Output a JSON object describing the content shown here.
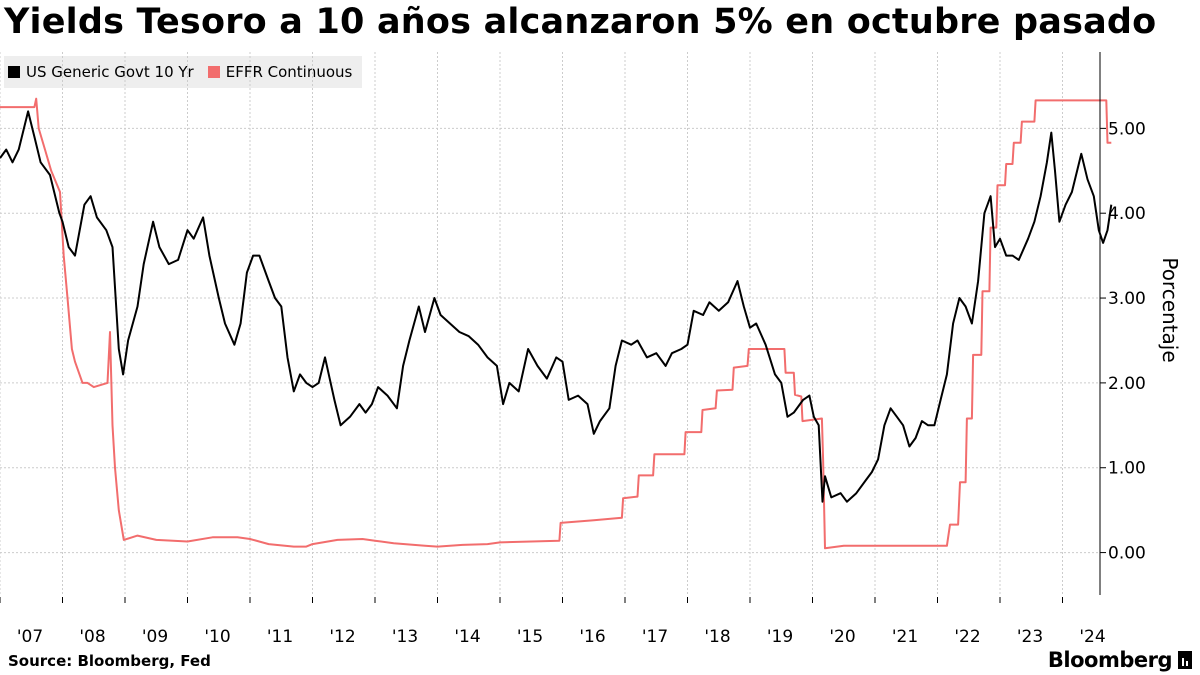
{
  "title": "Yields Tesoro a 10 años alcanzaron 5% en octubre pasado",
  "footer": {
    "source": "Source: Bloomberg, Fed",
    "brand": "Bloomberg"
  },
  "colors": {
    "yield": "#000000",
    "effr": "#f26d6d",
    "grid": "#cccccc"
  },
  "chart_data": {
    "type": "line",
    "ylabel": "Porcentaje",
    "ylim": [
      -0.5,
      5.9
    ],
    "xlim": [
      2007.0,
      2024.6
    ],
    "yticks": [
      "0.00",
      "1.00",
      "2.00",
      "3.00",
      "4.00",
      "5.00"
    ],
    "ytick_values": [
      0,
      1,
      2,
      3,
      4,
      5
    ],
    "xticks": [
      "'07",
      "'08",
      "'09",
      "'10",
      "'11",
      "'12",
      "'13",
      "'14",
      "'15",
      "'16",
      "'17",
      "'18",
      "'19",
      "'20",
      "'21",
      "'22",
      "'23",
      "'24"
    ],
    "xtick_values": [
      2007,
      2008,
      2009,
      2010,
      2011,
      2012,
      2013,
      2014,
      2015,
      2016,
      2017,
      2018,
      2019,
      2020,
      2021,
      2022,
      2023,
      2024
    ],
    "grid": true,
    "legend_position": "top-left",
    "series": [
      {
        "name": "US Generic Govt 10 Yr",
        "color": "#000000",
        "points": [
          [
            2007.0,
            4.65
          ],
          [
            2007.1,
            4.75
          ],
          [
            2007.2,
            4.6
          ],
          [
            2007.3,
            4.75
          ],
          [
            2007.45,
            5.2
          ],
          [
            2007.55,
            4.9
          ],
          [
            2007.65,
            4.6
          ],
          [
            2007.8,
            4.45
          ],
          [
            2007.95,
            4.0
          ],
          [
            2008.0,
            3.9
          ],
          [
            2008.1,
            3.6
          ],
          [
            2008.2,
            3.5
          ],
          [
            2008.35,
            4.1
          ],
          [
            2008.45,
            4.2
          ],
          [
            2008.55,
            3.95
          ],
          [
            2008.7,
            3.8
          ],
          [
            2008.8,
            3.6
          ],
          [
            2008.9,
            2.4
          ],
          [
            2008.97,
            2.1
          ],
          [
            2009.05,
            2.5
          ],
          [
            2009.2,
            2.9
          ],
          [
            2009.3,
            3.4
          ],
          [
            2009.45,
            3.9
          ],
          [
            2009.55,
            3.6
          ],
          [
            2009.7,
            3.4
          ],
          [
            2009.85,
            3.45
          ],
          [
            2010.0,
            3.8
          ],
          [
            2010.1,
            3.7
          ],
          [
            2010.25,
            3.95
          ],
          [
            2010.35,
            3.5
          ],
          [
            2010.5,
            3.0
          ],
          [
            2010.6,
            2.7
          ],
          [
            2010.75,
            2.45
          ],
          [
            2010.85,
            2.7
          ],
          [
            2010.95,
            3.3
          ],
          [
            2011.05,
            3.5
          ],
          [
            2011.15,
            3.5
          ],
          [
            2011.3,
            3.2
          ],
          [
            2011.4,
            3.0
          ],
          [
            2011.5,
            2.9
          ],
          [
            2011.6,
            2.3
          ],
          [
            2011.7,
            1.9
          ],
          [
            2011.8,
            2.1
          ],
          [
            2011.9,
            2.0
          ],
          [
            2012.0,
            1.95
          ],
          [
            2012.1,
            2.0
          ],
          [
            2012.2,
            2.3
          ],
          [
            2012.35,
            1.8
          ],
          [
            2012.45,
            1.5
          ],
          [
            2012.6,
            1.6
          ],
          [
            2012.75,
            1.75
          ],
          [
            2012.85,
            1.65
          ],
          [
            2012.95,
            1.75
          ],
          [
            2013.05,
            1.95
          ],
          [
            2013.2,
            1.85
          ],
          [
            2013.35,
            1.7
          ],
          [
            2013.45,
            2.2
          ],
          [
            2013.55,
            2.5
          ],
          [
            2013.7,
            2.9
          ],
          [
            2013.8,
            2.6
          ],
          [
            2013.95,
            3.0
          ],
          [
            2014.05,
            2.8
          ],
          [
            2014.2,
            2.7
          ],
          [
            2014.35,
            2.6
          ],
          [
            2014.5,
            2.55
          ],
          [
            2014.65,
            2.45
          ],
          [
            2014.8,
            2.3
          ],
          [
            2014.95,
            2.2
          ],
          [
            2015.05,
            1.75
          ],
          [
            2015.15,
            2.0
          ],
          [
            2015.3,
            1.9
          ],
          [
            2015.45,
            2.4
          ],
          [
            2015.6,
            2.2
          ],
          [
            2015.75,
            2.05
          ],
          [
            2015.9,
            2.3
          ],
          [
            2016.0,
            2.25
          ],
          [
            2016.1,
            1.8
          ],
          [
            2016.25,
            1.85
          ],
          [
            2016.4,
            1.75
          ],
          [
            2016.5,
            1.4
          ],
          [
            2016.6,
            1.55
          ],
          [
            2016.75,
            1.7
          ],
          [
            2016.85,
            2.2
          ],
          [
            2016.95,
            2.5
          ],
          [
            2017.1,
            2.45
          ],
          [
            2017.2,
            2.5
          ],
          [
            2017.35,
            2.3
          ],
          [
            2017.5,
            2.35
          ],
          [
            2017.65,
            2.2
          ],
          [
            2017.75,
            2.35
          ],
          [
            2017.9,
            2.4
          ],
          [
            2018.0,
            2.45
          ],
          [
            2018.1,
            2.85
          ],
          [
            2018.25,
            2.8
          ],
          [
            2018.35,
            2.95
          ],
          [
            2018.5,
            2.85
          ],
          [
            2018.65,
            2.95
          ],
          [
            2018.8,
            3.2
          ],
          [
            2018.9,
            2.9
          ],
          [
            2019.0,
            2.65
          ],
          [
            2019.1,
            2.7
          ],
          [
            2019.25,
            2.45
          ],
          [
            2019.4,
            2.1
          ],
          [
            2019.5,
            2.0
          ],
          [
            2019.6,
            1.6
          ],
          [
            2019.7,
            1.65
          ],
          [
            2019.85,
            1.8
          ],
          [
            2019.95,
            1.85
          ],
          [
            2020.02,
            1.6
          ],
          [
            2020.1,
            1.5
          ],
          [
            2020.16,
            0.6
          ],
          [
            2020.2,
            0.9
          ],
          [
            2020.3,
            0.65
          ],
          [
            2020.45,
            0.7
          ],
          [
            2020.55,
            0.6
          ],
          [
            2020.7,
            0.7
          ],
          [
            2020.85,
            0.85
          ],
          [
            2020.95,
            0.95
          ],
          [
            2021.05,
            1.1
          ],
          [
            2021.15,
            1.5
          ],
          [
            2021.25,
            1.7
          ],
          [
            2021.35,
            1.6
          ],
          [
            2021.45,
            1.5
          ],
          [
            2021.55,
            1.25
          ],
          [
            2021.65,
            1.35
          ],
          [
            2021.75,
            1.55
          ],
          [
            2021.85,
            1.5
          ],
          [
            2021.95,
            1.5
          ],
          [
            2022.05,
            1.8
          ],
          [
            2022.15,
            2.1
          ],
          [
            2022.25,
            2.7
          ],
          [
            2022.35,
            3.0
          ],
          [
            2022.45,
            2.9
          ],
          [
            2022.55,
            2.7
          ],
          [
            2022.65,
            3.2
          ],
          [
            2022.75,
            4.0
          ],
          [
            2022.85,
            4.2
          ],
          [
            2022.92,
            3.6
          ],
          [
            2023.0,
            3.7
          ],
          [
            2023.1,
            3.5
          ],
          [
            2023.2,
            3.5
          ],
          [
            2023.3,
            3.45
          ],
          [
            2023.45,
            3.7
          ],
          [
            2023.55,
            3.9
          ],
          [
            2023.65,
            4.2
          ],
          [
            2023.75,
            4.6
          ],
          [
            2023.82,
            4.95
          ],
          [
            2023.88,
            4.5
          ],
          [
            2023.95,
            3.9
          ],
          [
            2024.05,
            4.1
          ],
          [
            2024.15,
            4.25
          ],
          [
            2024.3,
            4.7
          ],
          [
            2024.4,
            4.4
          ],
          [
            2024.5,
            4.2
          ],
          [
            2024.58,
            3.8
          ],
          [
            2024.65,
            3.65
          ],
          [
            2024.72,
            3.8
          ],
          [
            2024.78,
            4.1
          ]
        ]
      },
      {
        "name": "EFFR Continuous",
        "color": "#f26d6d",
        "points": [
          [
            2007.0,
            5.25
          ],
          [
            2007.55,
            5.25
          ],
          [
            2007.58,
            5.35
          ],
          [
            2007.62,
            5.0
          ],
          [
            2007.72,
            4.75
          ],
          [
            2007.82,
            4.5
          ],
          [
            2007.96,
            4.25
          ],
          [
            2008.02,
            3.5
          ],
          [
            2008.08,
            3.0
          ],
          [
            2008.15,
            2.4
          ],
          [
            2008.2,
            2.25
          ],
          [
            2008.32,
            2.0
          ],
          [
            2008.4,
            2.0
          ],
          [
            2008.5,
            1.95
          ],
          [
            2008.72,
            2.0
          ],
          [
            2008.76,
            2.6
          ],
          [
            2008.8,
            1.5
          ],
          [
            2008.84,
            1.0
          ],
          [
            2008.9,
            0.5
          ],
          [
            2008.98,
            0.15
          ],
          [
            2009.2,
            0.2
          ],
          [
            2009.5,
            0.15
          ],
          [
            2010.0,
            0.13
          ],
          [
            2010.4,
            0.18
          ],
          [
            2010.8,
            0.18
          ],
          [
            2011.0,
            0.16
          ],
          [
            2011.3,
            0.1
          ],
          [
            2011.7,
            0.07
          ],
          [
            2011.9,
            0.07
          ],
          [
            2012.0,
            0.1
          ],
          [
            2012.4,
            0.15
          ],
          [
            2012.8,
            0.16
          ],
          [
            2013.0,
            0.14
          ],
          [
            2013.3,
            0.11
          ],
          [
            2013.8,
            0.08
          ],
          [
            2014.0,
            0.07
          ],
          [
            2014.4,
            0.09
          ],
          [
            2014.8,
            0.1
          ],
          [
            2015.0,
            0.12
          ],
          [
            2015.5,
            0.13
          ],
          [
            2015.95,
            0.14
          ],
          [
            2015.97,
            0.35
          ],
          [
            2016.5,
            0.38
          ],
          [
            2016.95,
            0.41
          ],
          [
            2016.97,
            0.64
          ],
          [
            2017.2,
            0.66
          ],
          [
            2017.22,
            0.91
          ],
          [
            2017.45,
            0.91
          ],
          [
            2017.47,
            1.16
          ],
          [
            2017.95,
            1.16
          ],
          [
            2017.97,
            1.42
          ],
          [
            2018.22,
            1.42
          ],
          [
            2018.24,
            1.68
          ],
          [
            2018.45,
            1.7
          ],
          [
            2018.47,
            1.91
          ],
          [
            2018.72,
            1.92
          ],
          [
            2018.74,
            2.18
          ],
          [
            2018.96,
            2.2
          ],
          [
            2018.98,
            2.4
          ],
          [
            2019.55,
            2.4
          ],
          [
            2019.57,
            2.12
          ],
          [
            2019.7,
            2.12
          ],
          [
            2019.72,
            1.86
          ],
          [
            2019.82,
            1.84
          ],
          [
            2019.84,
            1.55
          ],
          [
            2020.15,
            1.58
          ],
          [
            2020.17,
            1.1
          ],
          [
            2020.2,
            0.05
          ],
          [
            2020.5,
            0.08
          ],
          [
            2021.0,
            0.08
          ],
          [
            2021.5,
            0.08
          ],
          [
            2022.15,
            0.08
          ],
          [
            2022.2,
            0.33
          ],
          [
            2022.33,
            0.33
          ],
          [
            2022.36,
            0.83
          ],
          [
            2022.45,
            0.83
          ],
          [
            2022.47,
            1.58
          ],
          [
            2022.55,
            1.58
          ],
          [
            2022.57,
            2.33
          ],
          [
            2022.7,
            2.33
          ],
          [
            2022.72,
            3.08
          ],
          [
            2022.83,
            3.08
          ],
          [
            2022.85,
            3.83
          ],
          [
            2022.94,
            3.83
          ],
          [
            2022.96,
            4.33
          ],
          [
            2023.08,
            4.33
          ],
          [
            2023.1,
            4.58
          ],
          [
            2023.2,
            4.58
          ],
          [
            2023.22,
            4.83
          ],
          [
            2023.33,
            4.83
          ],
          [
            2023.35,
            5.08
          ],
          [
            2023.55,
            5.08
          ],
          [
            2023.57,
            5.33
          ],
          [
            2024.7,
            5.33
          ],
          [
            2024.72,
            4.83
          ],
          [
            2024.78,
            4.83
          ]
        ]
      }
    ]
  }
}
